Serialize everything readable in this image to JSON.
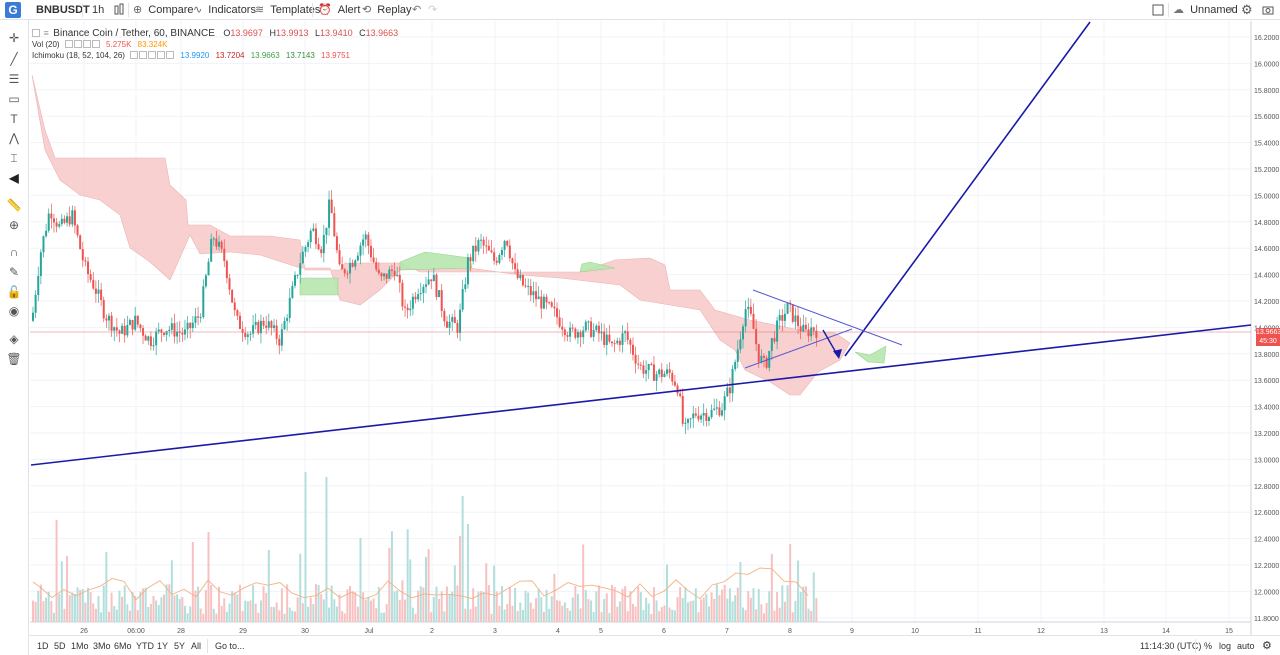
{
  "toolbar": {
    "logo": "G",
    "symbol": "BNBUSDT",
    "interval": "1h",
    "compare": "Compare",
    "indicators": "Indicators",
    "templates": "Templates",
    "alert": "Alert",
    "replay": "Replay",
    "layout_name": "Unnamed"
  },
  "legend": {
    "title": "Binance Coin / Tether, 60, BINANCE",
    "open_label": "O",
    "open": "13.9697",
    "high_label": "H",
    "high": "13.9913",
    "low_label": "L",
    "low": "13.9410",
    "close_label": "C",
    "close": "13.9663",
    "vol_label": "Vol (20)",
    "vol_value": "5.275K",
    "vol_ma": "83.324K",
    "ichimoku_label": "Ichimoku (18, 52, 104, 26)",
    "ichimoku_values": [
      "13.9920",
      "13.7204",
      "13.9663",
      "13.7143",
      "13.9751"
    ],
    "ichimoku_colors": [
      "#2196f3",
      "#c62828",
      "#43a047",
      "#388e3c",
      "#ef5350"
    ]
  },
  "price_axis": {
    "ticks": [
      "16.2000",
      "16.0000",
      "15.8000",
      "15.6000",
      "15.4000",
      "15.2000",
      "15.0000",
      "14.8000",
      "14.6000",
      "14.4000",
      "14.2000",
      "14.0000",
      "13.8000",
      "13.6000",
      "13.4000",
      "13.2000",
      "13.0000",
      "12.8000",
      "12.6000",
      "12.4000",
      "12.2000",
      "12.0000",
      "11.8000"
    ],
    "current_price": "13.9663",
    "countdown": "45:30"
  },
  "time_axis": {
    "ticks": [
      "26",
      "06:00",
      "28",
      "29",
      "30",
      "Jul",
      "2",
      "3",
      "4",
      "5",
      "6",
      "7",
      "8",
      "9",
      "10",
      "11",
      "12",
      "13",
      "14",
      "15"
    ]
  },
  "bottom": {
    "ranges": [
      "1D",
      "5D",
      "1Mo",
      "3Mo",
      "6Mo",
      "YTD",
      "1Y",
      "5Y",
      "All"
    ],
    "goto": "Go to...",
    "clock": "11:14:30 (UTC)",
    "percent": "%",
    "log": "log",
    "auto": "auto"
  },
  "colors": {
    "up": "#26a69a",
    "down": "#ef5350",
    "cloud_bear": "#f8c8c8",
    "cloud_bull": "#b7e7b0",
    "trendline": "#1a1aa8",
    "grid": "#f0f3fa"
  },
  "chart_data": {
    "type": "candlestick",
    "title": "Binance Coin / Tether, 60, BINANCE",
    "symbol": "BNBUSDT",
    "interval": "60",
    "ylim": [
      11.75,
      16.3
    ],
    "last_close": 13.9663,
    "price_trajectory": [
      {
        "x": "25",
        "price": 14.2
      },
      {
        "x": "26",
        "price": 14.75
      },
      {
        "x": "26 06:00",
        "price": 14.0
      },
      {
        "x": "28",
        "price": 13.95
      },
      {
        "x": "29",
        "price": 14.3
      },
      {
        "x": "30",
        "price": 14.8
      },
      {
        "x": "Jul 1",
        "price": 14.4
      },
      {
        "x": "2",
        "price": 14.1
      },
      {
        "x": "3",
        "price": 14.7
      },
      {
        "x": "4",
        "price": 14.1
      },
      {
        "x": "5",
        "price": 13.9
      },
      {
        "x": "6",
        "price": 13.65
      },
      {
        "x": "6.3",
        "price": 13.2
      },
      {
        "x": "7",
        "price": 13.4
      },
      {
        "x": "7.3",
        "price": 14.1
      },
      {
        "x": "7.6",
        "price": 13.75
      },
      {
        "x": "8",
        "price": 14.15
      },
      {
        "x": "8.4",
        "price": 13.97
      }
    ]
  }
}
